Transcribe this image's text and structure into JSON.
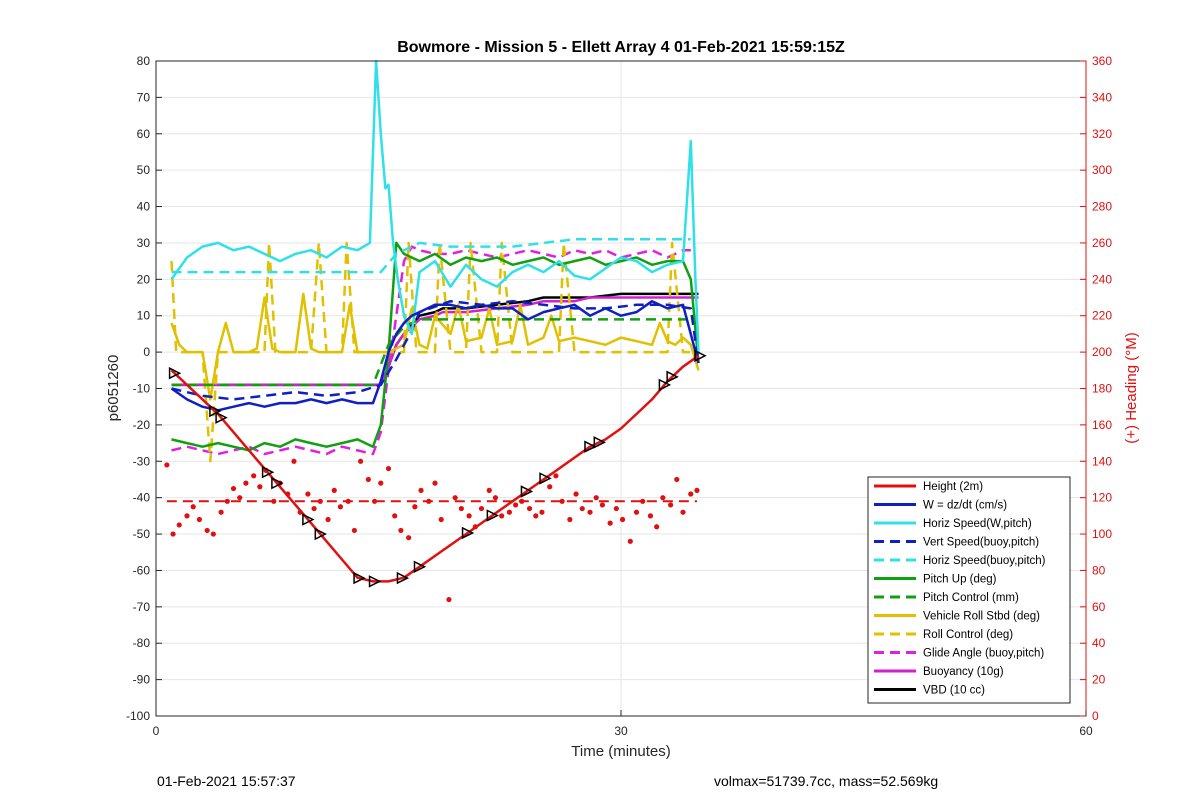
{
  "chart_data": {
    "type": "line",
    "title": "Bowmore - Mission 5 - Ellett Array 4 01-Feb-2021 15:59:15Z",
    "xlabel": "Time (minutes)",
    "ylabel": "p6051260",
    "y2label": "(+) Heading (°M)",
    "xlim": [
      0,
      60
    ],
    "ylim": [
      -100,
      80
    ],
    "y2lim": [
      0,
      360
    ],
    "xticks": [
      0,
      30,
      60
    ],
    "yticks": [
      -100,
      -90,
      -80,
      -70,
      -60,
      -50,
      -40,
      -30,
      -20,
      -10,
      0,
      10,
      20,
      30,
      40,
      50,
      60,
      70,
      80
    ],
    "y2ticks": [
      0,
      20,
      40,
      60,
      80,
      100,
      120,
      140,
      160,
      180,
      200,
      220,
      240,
      260,
      280,
      300,
      320,
      340,
      360
    ],
    "grid": true,
    "legend_position": "bottom-right",
    "series": [
      {
        "name": "Height (2m)",
        "color": "#e01010",
        "style": "solid",
        "x": [
          1.0,
          2,
          3,
          4,
          5,
          6,
          7,
          8,
          9,
          10,
          11,
          12,
          13,
          14,
          15,
          16,
          17,
          18,
          19,
          20,
          21,
          22,
          23,
          24,
          25,
          26,
          27,
          28,
          29,
          30,
          31,
          32,
          33,
          34,
          35
        ],
        "y": [
          -5,
          -9,
          -13,
          -17,
          -22,
          -27,
          -32,
          -37,
          -42,
          -47,
          -52,
          -57,
          -62,
          -63,
          -63,
          -62,
          -59,
          -56,
          -53,
          -50,
          -47,
          -44,
          -41,
          -38,
          -35,
          -32,
          -29,
          -26,
          -24,
          -21,
          -17,
          -13,
          -8,
          -4,
          -1
        ]
      },
      {
        "name": "W = dz/dt (cm/s)",
        "color": "#1020c0",
        "style": "solid",
        "x": [
          1,
          2,
          3,
          4,
          5,
          6,
          7,
          8,
          9,
          10,
          11,
          12,
          13,
          14,
          14.5,
          15,
          15.5,
          16,
          16.5,
          17,
          18,
          19,
          20,
          21,
          22,
          23,
          24,
          25,
          26,
          27,
          28,
          29,
          30,
          31,
          32,
          33,
          34,
          35
        ],
        "y": [
          -10,
          -13,
          -15,
          -16,
          -15,
          -14,
          -15,
          -14,
          -14,
          -13,
          -14,
          -13,
          -14,
          -14,
          -8,
          0,
          5,
          8,
          10,
          11,
          13,
          13,
          12,
          13,
          12,
          12,
          9,
          11,
          12,
          13,
          10,
          12,
          10,
          11,
          14,
          12,
          13,
          -3
        ]
      },
      {
        "name": "Horiz Speed(W,pitch)",
        "color": "#30e0e8",
        "style": "solid",
        "x": [
          1,
          2,
          3,
          4,
          5,
          6,
          7,
          8,
          9,
          10,
          11,
          12,
          13,
          13.8,
          14.2,
          14.5,
          14.8,
          15,
          15.3,
          15.6,
          16,
          16.5,
          17,
          18,
          19,
          20,
          21,
          22,
          23,
          24,
          25,
          26,
          27,
          28,
          29,
          30,
          31,
          32,
          33,
          34,
          34.5,
          34.8,
          35
        ],
        "y": [
          20,
          26,
          29,
          30,
          28,
          29,
          27,
          25,
          27,
          28,
          26,
          29,
          28,
          30,
          80,
          60,
          45,
          46,
          30,
          20,
          10,
          5,
          22,
          25,
          18,
          24,
          20,
          18,
          22,
          24,
          22,
          25,
          21,
          20,
          23,
          26,
          25,
          22,
          24,
          25,
          58,
          20,
          0
        ]
      },
      {
        "name": "Vert Speed(buoy,pitch)",
        "color": "#1020c0",
        "style": "dash",
        "x": [
          1,
          3,
          5,
          7,
          9,
          11,
          13,
          14.5,
          15.5,
          16.5,
          17,
          19,
          21,
          23,
          25,
          27,
          29,
          31,
          33,
          34.5,
          35
        ],
        "y": [
          -10,
          -12,
          -13,
          -12,
          -11,
          -12,
          -11,
          -9,
          -2,
          6,
          11,
          14,
          13,
          14,
          13,
          12,
          12,
          13,
          13,
          12,
          -3
        ]
      },
      {
        "name": "Horiz Speed(buoy,pitch)",
        "color": "#30e0e8",
        "style": "dash",
        "x": [
          1,
          3,
          5,
          7,
          9,
          11,
          13,
          14.5,
          15.5,
          16.5,
          17,
          19,
          21,
          23,
          25,
          27,
          29,
          31,
          33,
          34.5
        ],
        "y": [
          22,
          22,
          22,
          22,
          22,
          22,
          22,
          22,
          27,
          29,
          30,
          29,
          29,
          29,
          30,
          31,
          31,
          31,
          31,
          31
        ]
      },
      {
        "name": "Pitch Up (deg)",
        "color": "#10a010",
        "style": "solid",
        "x": [
          1,
          2,
          3,
          4,
          5,
          6,
          7,
          8,
          9,
          10,
          11,
          12,
          13,
          14,
          14.5,
          15,
          15.5,
          16,
          16.5,
          17,
          18,
          19,
          20,
          21,
          22,
          23,
          24,
          25,
          26,
          27,
          28,
          29,
          30,
          31,
          32,
          33,
          34,
          34.5,
          35
        ],
        "y": [
          -24,
          -25,
          -26,
          -25,
          -26,
          -27,
          -25,
          -26,
          -24,
          -25,
          -26,
          -25,
          -24,
          -26,
          -20,
          0,
          30,
          27,
          26,
          25,
          27,
          24,
          26,
          25,
          26,
          24,
          25,
          26,
          24,
          25,
          26,
          24,
          25,
          26,
          24,
          25,
          25,
          20,
          -3
        ]
      },
      {
        "name": "Pitch Control (mm)",
        "color": "#10a010",
        "style": "dash",
        "x": [
          1,
          5,
          10,
          14,
          15,
          16,
          17,
          20,
          25,
          30,
          34.5
        ],
        "y": [
          -9,
          -9,
          -9,
          -9,
          2,
          7,
          9,
          9,
          9,
          9,
          9
        ]
      },
      {
        "name": "Vehicle Roll Stbd (deg)",
        "color": "#e0c000",
        "style": "solid",
        "x": [
          1,
          1.5,
          2,
          3,
          3.5,
          4,
          4.5,
          5,
          6,
          6.5,
          7,
          7.5,
          8,
          9,
          9.5,
          10,
          10.5,
          11,
          12,
          12.5,
          13,
          13.5,
          14,
          15,
          16,
          16.5,
          17,
          17.5,
          18,
          19,
          19.5,
          20,
          21,
          21.5,
          22,
          23,
          23.5,
          24,
          25,
          25.5,
          26,
          27,
          28,
          29,
          30,
          31,
          32,
          32.5,
          33,
          33.5,
          34,
          34.5,
          35
        ],
        "y": [
          8,
          2,
          0,
          0,
          -13,
          0,
          8,
          0,
          0,
          1,
          15,
          1,
          0,
          0,
          16,
          1,
          0,
          0,
          0,
          13,
          0,
          0,
          0,
          0,
          2,
          12,
          2,
          1,
          10,
          5,
          13,
          3,
          4,
          12,
          2,
          3,
          13,
          2,
          4,
          10,
          3,
          4,
          3,
          2,
          4,
          3,
          2,
          8,
          3,
          2,
          4,
          2,
          -5
        ]
      },
      {
        "name": "Roll Control (deg)",
        "color": "#e0c000",
        "style": "dash",
        "x": [
          1,
          1.3,
          2,
          3,
          3.5,
          4,
          4.5,
          5,
          7,
          7.3,
          7.7,
          8,
          9,
          10,
          10.5,
          11,
          12,
          12.3,
          12.8,
          13,
          14,
          15,
          16,
          16.3,
          16.8,
          17,
          18,
          18.3,
          19,
          20,
          20.3,
          21,
          22,
          22.3,
          23,
          24,
          26,
          26.3,
          27,
          30,
          33,
          33.3,
          34,
          34.5
        ],
        "y": [
          25,
          0,
          0,
          0,
          -30,
          0,
          0,
          0,
          0,
          30,
          0,
          0,
          0,
          0,
          30,
          0,
          0,
          30,
          0,
          0,
          0,
          0,
          0,
          30,
          0,
          0,
          0,
          30,
          0,
          0,
          30,
          0,
          0,
          30,
          0,
          0,
          0,
          30,
          0,
          0,
          0,
          30,
          0,
          0
        ]
      },
      {
        "name": "Glide Angle (buoy,pitch)",
        "color": "#e020e0",
        "style": "dash",
        "x": [
          1,
          2,
          3,
          4,
          5,
          6,
          7,
          8,
          9,
          10,
          11,
          12,
          13,
          14,
          14.5,
          15,
          15.5,
          16,
          16.5,
          17,
          18,
          19,
          20,
          21,
          22,
          23,
          24,
          25,
          26,
          27,
          28,
          29,
          30,
          31,
          32,
          33,
          34,
          34.5
        ],
        "y": [
          -27,
          -26,
          -27,
          -28,
          -27,
          -26,
          -28,
          -27,
          -26,
          -27,
          -28,
          -26,
          -27,
          -28,
          -22,
          -5,
          10,
          25,
          29,
          28,
          27,
          27,
          28,
          27,
          26,
          27,
          28,
          27,
          26,
          28,
          27,
          28,
          26,
          27,
          28,
          26,
          28,
          28
        ]
      },
      {
        "name": "Buoyancy (10g)",
        "color": "#d020d0",
        "style": "solid",
        "x": [
          1,
          5,
          10,
          14.5,
          15,
          15.5,
          16,
          17,
          18,
          18.5,
          20,
          22,
          24,
          25,
          26,
          27,
          28,
          30,
          31,
          32,
          33,
          34,
          35
        ],
        "y": [
          -9,
          -9,
          -9,
          -9,
          -4,
          2,
          5,
          9,
          10,
          11,
          11,
          12,
          13,
          14,
          14,
          14,
          15,
          15,
          15,
          15,
          15,
          15,
          15
        ]
      },
      {
        "name": "VBD (10 cc)",
        "color": "#000000",
        "style": "solid",
        "x": [
          1,
          5,
          10,
          14.5,
          15,
          15.5,
          16,
          17,
          18,
          18.5,
          20,
          22,
          24,
          25,
          26,
          27,
          28,
          30,
          31,
          32,
          33,
          34,
          35
        ],
        "y": [
          -9,
          -9,
          -9,
          -9,
          -4,
          2,
          5,
          10,
          11,
          12,
          12,
          13,
          14,
          15,
          15,
          15,
          15,
          16,
          16,
          16,
          16,
          16,
          16
        ]
      }
    ],
    "heading_points": {
      "color": "#e01010",
      "axis": "right",
      "mean_heading": 118,
      "x": [
        0.7,
        1.1,
        1.5,
        2.0,
        2.4,
        2.8,
        3.3,
        3.7,
        4.2,
        4.6,
        5.0,
        5.4,
        5.8,
        6.3,
        6.7,
        7.1,
        7.6,
        8.0,
        8.5,
        8.9,
        9.3,
        9.8,
        10.2,
        10.6,
        11.1,
        11.5,
        11.9,
        12.4,
        12.8,
        13.2,
        13.7,
        14.1,
        14.5,
        15.0,
        15.4,
        15.8,
        16.3,
        16.7,
        17.1,
        17.6,
        18.0,
        18.4,
        18.9,
        19.3,
        19.7,
        20.2,
        20.6,
        21.0,
        21.5,
        21.9,
        22.3,
        22.8,
        23.2,
        23.6,
        24.1,
        24.5,
        24.9,
        25.4,
        25.8,
        26.2,
        26.7,
        27.1,
        27.5,
        28.0,
        28.4,
        28.8,
        29.3,
        29.7,
        30.1,
        30.6,
        31.0,
        31.4,
        31.9,
        32.3,
        32.7,
        33.2,
        33.6,
        34.0,
        34.5,
        34.9
      ],
      "y": [
        138,
        100,
        105,
        110,
        115,
        108,
        102,
        100,
        112,
        118,
        125,
        120,
        128,
        132,
        126,
        135,
        118,
        128,
        122,
        140,
        112,
        122,
        114,
        118,
        108,
        124,
        115,
        118,
        102,
        140,
        130,
        118,
        128,
        136,
        110,
        102,
        98,
        115,
        124,
        118,
        128,
        108,
        64,
        120,
        114,
        110,
        104,
        114,
        124,
        120,
        110,
        112,
        116,
        118,
        114,
        110,
        112,
        126,
        132,
        118,
        108,
        122,
        114,
        112,
        120,
        116,
        106,
        114,
        108,
        96,
        112,
        118,
        110,
        104,
        120,
        116,
        130,
        112,
        122,
        124
      ]
    },
    "markers": {
      "symbol": "triangle",
      "on_series": "Height (2m)",
      "x": [
        1.2,
        3.8,
        4.2,
        7.2,
        7.8,
        9.8,
        10.6,
        13.1,
        14.1,
        15.9,
        17.0,
        20.1,
        21.7,
        23.9,
        25.1,
        28.0,
        28.6,
        32.8,
        33.3,
        35.1
      ]
    },
    "legend": [
      {
        "label": "Height (2m)",
        "color": "#e01010",
        "style": "solid"
      },
      {
        "label": "W = dz/dt (cm/s)",
        "color": "#1020c0",
        "style": "solid"
      },
      {
        "label": "Horiz Speed(W,pitch)",
        "color": "#30e0e8",
        "style": "solid"
      },
      {
        "label": "Vert Speed(buoy,pitch)",
        "color": "#1020c0",
        "style": "dash"
      },
      {
        "label": "Horiz Speed(buoy,pitch)",
        "color": "#30e0e8",
        "style": "dash"
      },
      {
        "label": "Pitch Up (deg)",
        "color": "#10a010",
        "style": "solid"
      },
      {
        "label": "Pitch Control (mm)",
        "color": "#10a010",
        "style": "dash"
      },
      {
        "label": "Vehicle Roll Stbd (deg)",
        "color": "#e0c000",
        "style": "solid"
      },
      {
        "label": "Roll Control (deg)",
        "color": "#e0c000",
        "style": "dash"
      },
      {
        "label": "Glide Angle (buoy,pitch)",
        "color": "#e020e0",
        "style": "dash"
      },
      {
        "label": "Buoyancy (10g)",
        "color": "#d020d0",
        "style": "solid"
      },
      {
        "label": "VBD (10 cc)",
        "color": "#000000",
        "style": "solid"
      }
    ]
  },
  "footer": {
    "timestamp": "01-Feb-2021 15:57:37",
    "stats": "volmax=51739.7cc, mass=52.569kg"
  }
}
